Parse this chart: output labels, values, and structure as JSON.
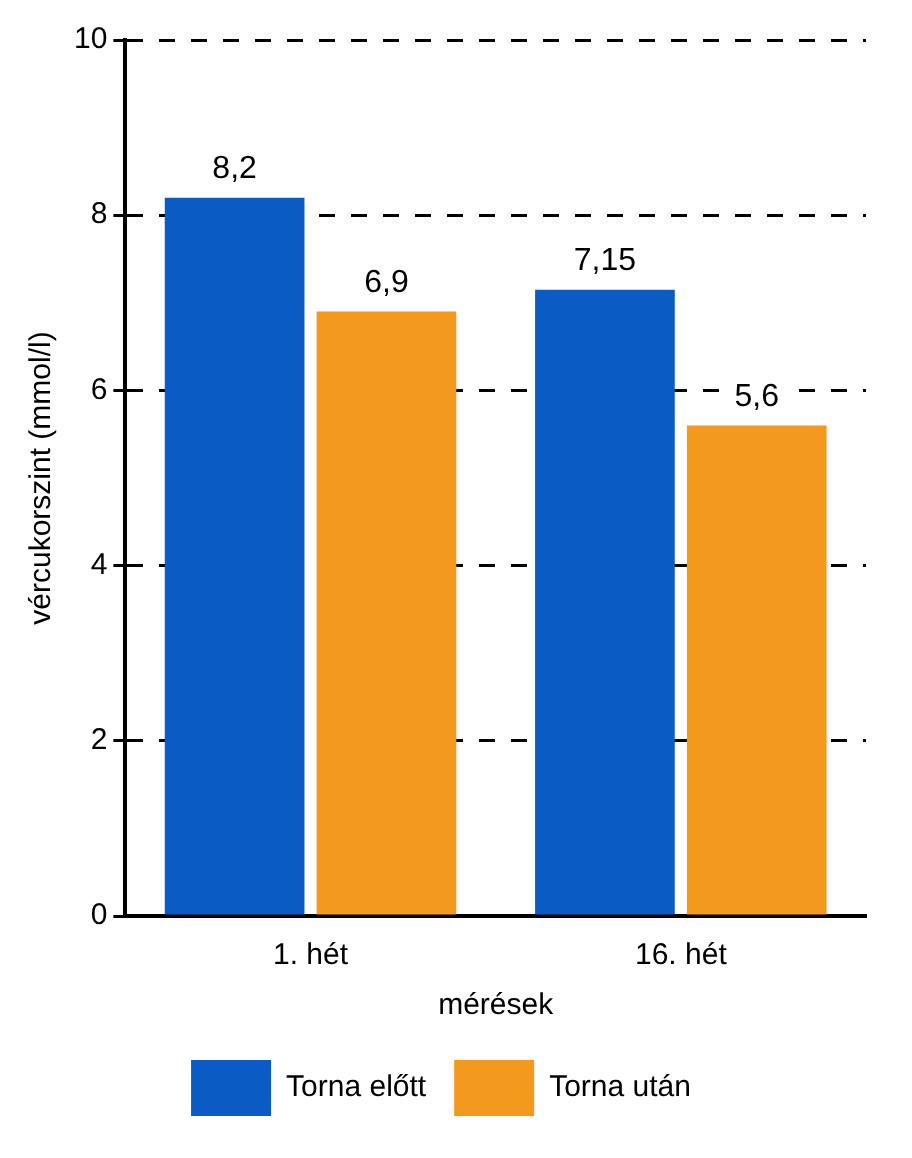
{
  "chart_data": {
    "type": "bar",
    "categories": [
      "1. hét",
      "16. hét"
    ],
    "xlabel": "mérések",
    "ylabel": "vércukorszint (mmol/l)",
    "series": [
      {
        "name": "Torna előtt",
        "color": "#0a5bc4",
        "values": [
          8.2,
          7.15
        ],
        "value_labels": [
          "8,2",
          "7,15"
        ]
      },
      {
        "name": "Torna után",
        "color": "#f39a1e",
        "values": [
          6.9,
          5.6
        ],
        "value_labels": [
          "6,9",
          "5,6"
        ]
      }
    ],
    "ylim": [
      0,
      10
    ],
    "yticks": [
      0,
      2,
      4,
      6,
      8,
      10
    ],
    "grid": "y",
    "legend": "bottom"
  }
}
